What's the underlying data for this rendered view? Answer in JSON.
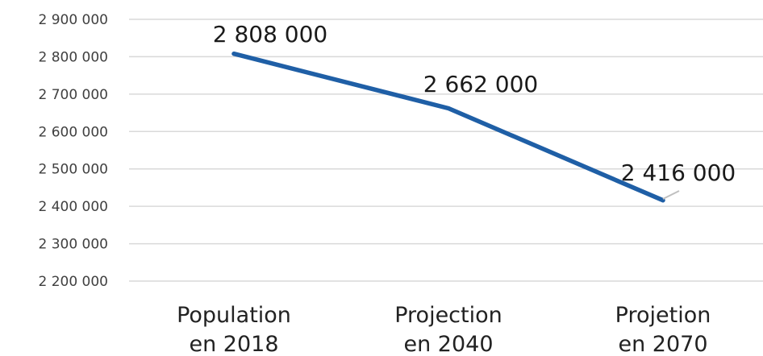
{
  "chart_data": {
    "type": "line",
    "categories": [
      [
        "Population",
        "en 2018"
      ],
      [
        "Projection",
        "en 2040"
      ],
      [
        "Projetion",
        "en 2070"
      ]
    ],
    "series": [
      {
        "values": [
          2808000,
          2662000,
          2416000
        ]
      }
    ],
    "data_labels": [
      "2 808 000",
      "2 662 000",
      "2 416 000"
    ],
    "ylim": [
      2200000,
      2900000
    ],
    "yticks": [
      2200000,
      2300000,
      2400000,
      2500000,
      2600000,
      2700000,
      2800000,
      2900000
    ],
    "ytick_labels": [
      "2 200 000",
      "2 300 000",
      "2 400 000",
      "2 500 000",
      "2 600 000",
      "2 700 000",
      "2 800 000",
      "2 900 000"
    ],
    "grid": true,
    "line_color": "#1f5fa6",
    "title": "",
    "xlabel": "",
    "ylabel": ""
  }
}
